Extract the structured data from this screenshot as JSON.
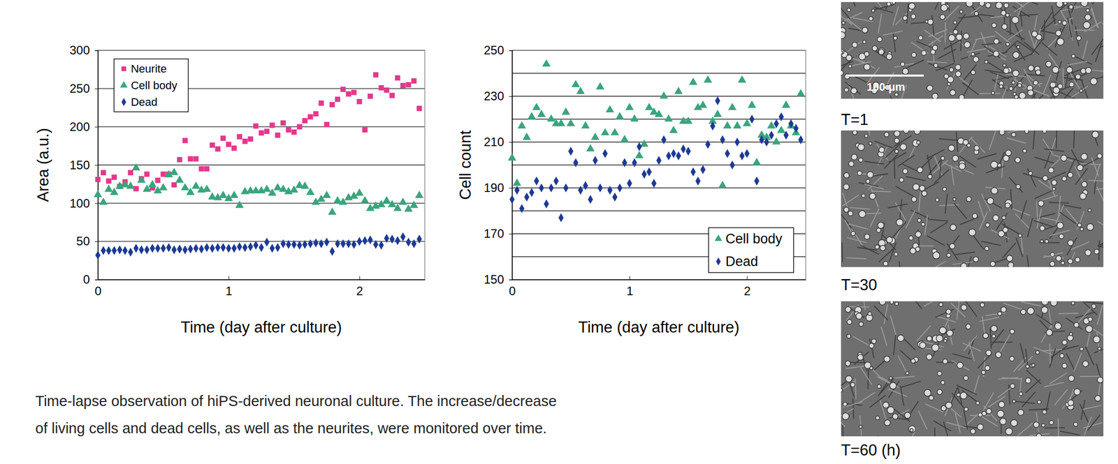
{
  "chart_data": [
    {
      "type": "scatter",
      "x_label": "Time (day after culture)",
      "y_label": "Area (a.u.)",
      "x": [
        0,
        0.042,
        0.083,
        0.125,
        0.167,
        0.208,
        0.25,
        0.292,
        0.333,
        0.375,
        0.417,
        0.458,
        0.5,
        0.542,
        0.583,
        0.625,
        0.667,
        0.708,
        0.75,
        0.792,
        0.833,
        0.875,
        0.917,
        0.958,
        1,
        1.042,
        1.083,
        1.125,
        1.167,
        1.208,
        1.25,
        1.292,
        1.333,
        1.375,
        1.417,
        1.458,
        1.5,
        1.542,
        1.583,
        1.625,
        1.667,
        1.708,
        1.75,
        1.792,
        1.833,
        1.875,
        1.917,
        1.958,
        2,
        2.042,
        2.083,
        2.125,
        2.167,
        2.208,
        2.25,
        2.292,
        2.333,
        2.375,
        2.417,
        2.458
      ],
      "series": [
        {
          "name": "Neurite",
          "color": "#e4388c",
          "marker": "square",
          "values": [
            131,
            140,
            129,
            134,
            122,
            128,
            140,
            119,
            132,
            138,
            120,
            130,
            138,
            138,
            124,
            157,
            182,
            158,
            158,
            145,
            145,
            176,
            171,
            185,
            177,
            172,
            187,
            181,
            184,
            201,
            192,
            194,
            202,
            189,
            205,
            196,
            193,
            200,
            208,
            213,
            217,
            231,
            203,
            229,
            236,
            249,
            243,
            245,
            233,
            196,
            240,
            268,
            251,
            248,
            241,
            264,
            254,
            255,
            260,
            224
          ]
        },
        {
          "name": "Cell body",
          "color": "#3aa57c",
          "marker": "triangle",
          "values": [
            111,
            101,
            118,
            114,
            122,
            124,
            122,
            146,
            130,
            118,
            124,
            116,
            120,
            137,
            140,
            130,
            120,
            114,
            122,
            117,
            118,
            108,
            107,
            110,
            106,
            110,
            97,
            115,
            116,
            116,
            116,
            118,
            113,
            120,
            118,
            115,
            117,
            123,
            122,
            114,
            101,
            105,
            110,
            88,
            103,
            101,
            107,
            109,
            113,
            103,
            93,
            96,
            98,
            103,
            98,
            93,
            101,
            92,
            97,
            110
          ]
        },
        {
          "name": "Dead",
          "color": "#1d3a93",
          "marker": "diamond",
          "values": [
            32,
            38,
            38,
            38,
            39,
            38,
            36,
            41,
            39,
            39,
            41,
            41,
            41,
            42,
            39,
            40,
            39,
            40,
            41,
            40,
            42,
            41,
            42,
            42,
            41,
            41,
            43,
            42,
            43,
            45,
            42,
            49,
            41,
            42,
            47,
            46,
            46,
            45,
            46,
            47,
            48,
            47,
            49,
            37,
            47,
            47,
            47,
            46,
            50,
            51,
            52,
            46,
            45,
            54,
            53,
            51,
            56,
            49,
            47,
            53
          ]
        }
      ],
      "xlim": [
        0,
        2.5
      ],
      "xticks": [
        0,
        1,
        2
      ],
      "ylim": [
        0,
        300
      ],
      "yticks": [
        0,
        50,
        100,
        150,
        200,
        250,
        300
      ],
      "grid": true,
      "legend": "upper left"
    },
    {
      "type": "scatter",
      "x_label": "Time (day after culture)",
      "y_label": "Cell count",
      "x": [
        0,
        0.042,
        0.083,
        0.125,
        0.167,
        0.208,
        0.25,
        0.292,
        0.333,
        0.375,
        0.417,
        0.458,
        0.5,
        0.542,
        0.583,
        0.625,
        0.667,
        0.708,
        0.75,
        0.792,
        0.833,
        0.875,
        0.917,
        0.958,
        1,
        1.042,
        1.083,
        1.125,
        1.167,
        1.208,
        1.25,
        1.292,
        1.333,
        1.375,
        1.417,
        1.458,
        1.5,
        1.542,
        1.583,
        1.625,
        1.667,
        1.708,
        1.75,
        1.792,
        1.833,
        1.875,
        1.917,
        1.958,
        2,
        2.042,
        2.083,
        2.125,
        2.167,
        2.208,
        2.25,
        2.292,
        2.333,
        2.375,
        2.417,
        2.458
      ],
      "series": [
        {
          "name": "Cell body",
          "color": "#3aa57c",
          "marker": "triangle",
          "values": [
            203,
            192,
            217,
            212,
            221,
            225,
            222,
            244,
            220,
            218,
            218,
            223,
            218,
            235,
            232,
            217,
            207,
            212,
            234,
            214,
            224,
            214,
            221,
            211,
            225,
            220,
            204,
            209,
            225,
            223,
            222,
            230,
            220,
            215,
            232,
            219,
            219,
            236,
            225,
            226,
            237,
            219,
            222,
            191,
            217,
            225,
            217,
            237,
            218,
            226,
            201,
            213,
            212,
            217,
            210,
            215,
            226,
            217,
            214,
            231
          ]
        },
        {
          "name": "Dead",
          "color": "#1d3a93",
          "marker": "diamond",
          "values": [
            185,
            189,
            181,
            186,
            188,
            193,
            190,
            183,
            190,
            193,
            177,
            190,
            206,
            201,
            189,
            191,
            185,
            202,
            190,
            205,
            189,
            186,
            190,
            201,
            192,
            201,
            208,
            196,
            197,
            192,
            202,
            211,
            204,
            205,
            204,
            207,
            206,
            197,
            193,
            198,
            209,
            217,
            228,
            211,
            205,
            200,
            210,
            204,
            205,
            220,
            193,
            211,
            210,
            213,
            218,
            221,
            213,
            218,
            216,
            211
          ]
        }
      ],
      "xlim": [
        0,
        2.5
      ],
      "xticks": [
        0,
        1,
        2
      ],
      "ylim": [
        150,
        250
      ],
      "yticks": [
        150,
        170,
        190,
        210,
        230,
        250
      ],
      "minor_yticks": [
        160,
        180,
        200,
        220,
        240
      ],
      "grid": true,
      "legend": "lower right"
    }
  ],
  "caption": [
    "Time-lapse observation of hiPS-derived neuronal culture. The increase/decrease",
    "of living cells and dead cells, as well as the neurites, were monitored over time."
  ],
  "images": [
    {
      "label": "T=1",
      "scale_bar": "100 μm"
    },
    {
      "label": "T=30"
    },
    {
      "label": "T=60 (h)"
    }
  ]
}
